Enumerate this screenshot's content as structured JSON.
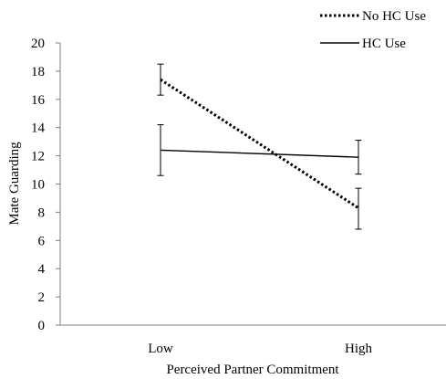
{
  "chart_data": {
    "type": "line",
    "title": "",
    "xlabel": "Perceived Partner Commitment",
    "ylabel": "Mate Guarding",
    "categories": [
      "Low",
      "High"
    ],
    "ylim": [
      0,
      20
    ],
    "yticks": [
      "0",
      "2",
      "4",
      "6",
      "8",
      "10",
      "12",
      "14",
      "16",
      "18",
      "20"
    ],
    "grid": false,
    "legend_position": "top-right",
    "series": [
      {
        "name": "No HC Use",
        "line_style": "dotted",
        "color": "#000000",
        "values": [
          17.4,
          8.3
        ],
        "error_low": [
          16.3,
          6.8
        ],
        "error_high": [
          18.5,
          9.7
        ]
      },
      {
        "name": "HC Use",
        "line_style": "solid",
        "color": "#000000",
        "values": [
          12.4,
          11.9
        ],
        "error_low": [
          10.6,
          10.7
        ],
        "error_high": [
          14.2,
          13.1
        ]
      }
    ]
  }
}
